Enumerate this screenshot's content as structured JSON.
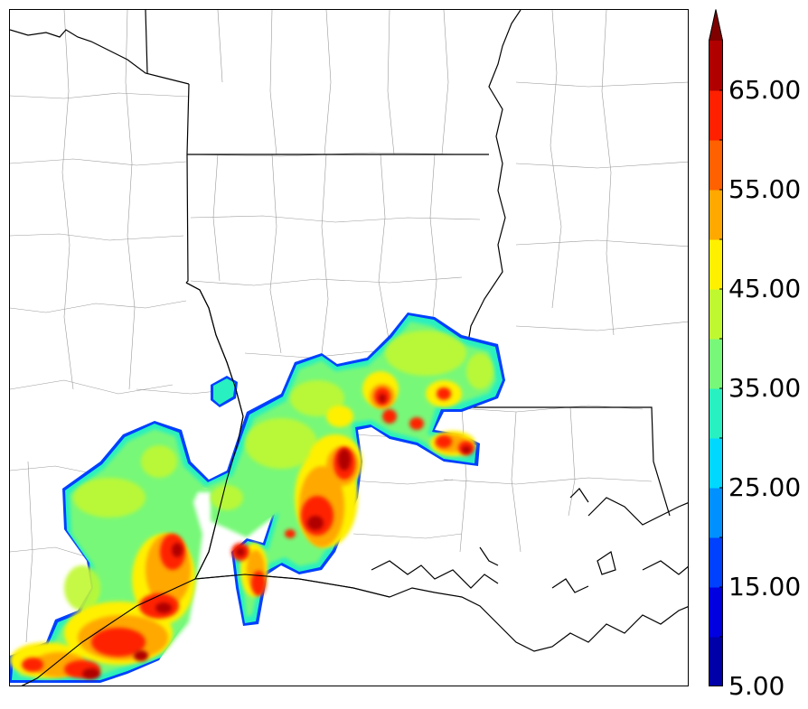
{
  "colorbar": {
    "labels": [
      "5.00",
      "15.00",
      "25.00",
      "35.00",
      "45.00",
      "55.00",
      "65.00"
    ],
    "min": 5,
    "max": 70,
    "step": 5,
    "extend": "max",
    "colors": [
      "#0000a8",
      "#0000e0",
      "#0040ff",
      "#0090ff",
      "#00d8ff",
      "#28f0c0",
      "#78f878",
      "#c0f830",
      "#fff000",
      "#ffa800",
      "#ff6000",
      "#ff2000",
      "#b00000"
    ],
    "extend_color": "#800000"
  },
  "map": {
    "background": "#ffffff",
    "state_border_color": "#000000",
    "county_border_color": "#9a9a9a",
    "coast_color": "#000000"
  }
}
